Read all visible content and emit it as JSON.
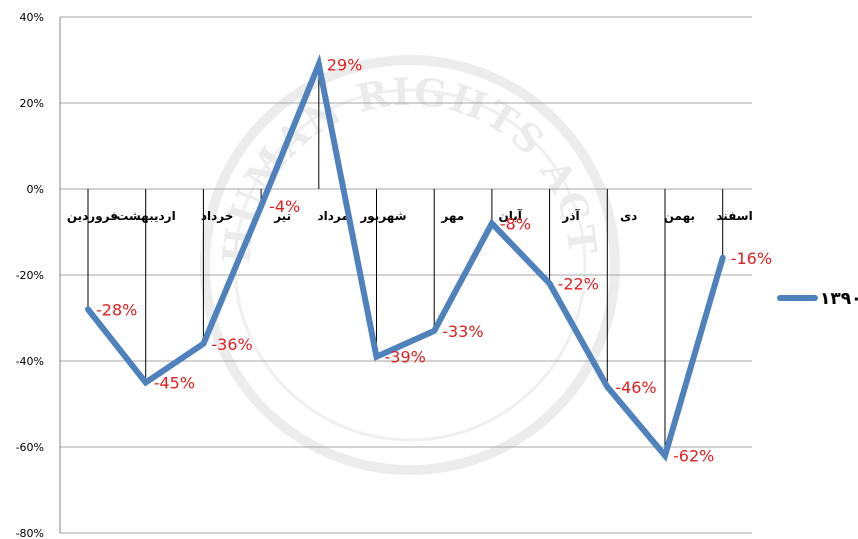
{
  "chart_data": {
    "type": "line",
    "categories": [
      "فروردین",
      "اردیبهشت",
      "خرداد",
      "تیر",
      "مرداد",
      "شهریور",
      "مهر",
      "آبان",
      "آذر",
      "دی",
      "بهمن",
      "اسفند"
    ],
    "series": [
      {
        "name": "۱۳۹۰",
        "values": [
          -28,
          -45,
          -36,
          -4,
          29,
          -39,
          -33,
          -8,
          -22,
          -46,
          -62,
          -16
        ],
        "labels": [
          "-28%",
          "-45%",
          "-36%",
          "-4%",
          "29%",
          "-39%",
          "-33%",
          "-8%",
          "-22%",
          "-46%",
          "-62%",
          "-16%"
        ],
        "color": "#4f81bd"
      }
    ],
    "ylim": [
      -80,
      40
    ],
    "yticks": [
      40,
      20,
      0,
      -20,
      -40,
      -60,
      -80
    ],
    "ytick_labels": [
      "40%",
      "20%",
      "0%",
      "-20%",
      "-40%",
      "-60%",
      "-80%"
    ],
    "grid": true,
    "legend_position": "right",
    "label_color": "#e02020"
  }
}
